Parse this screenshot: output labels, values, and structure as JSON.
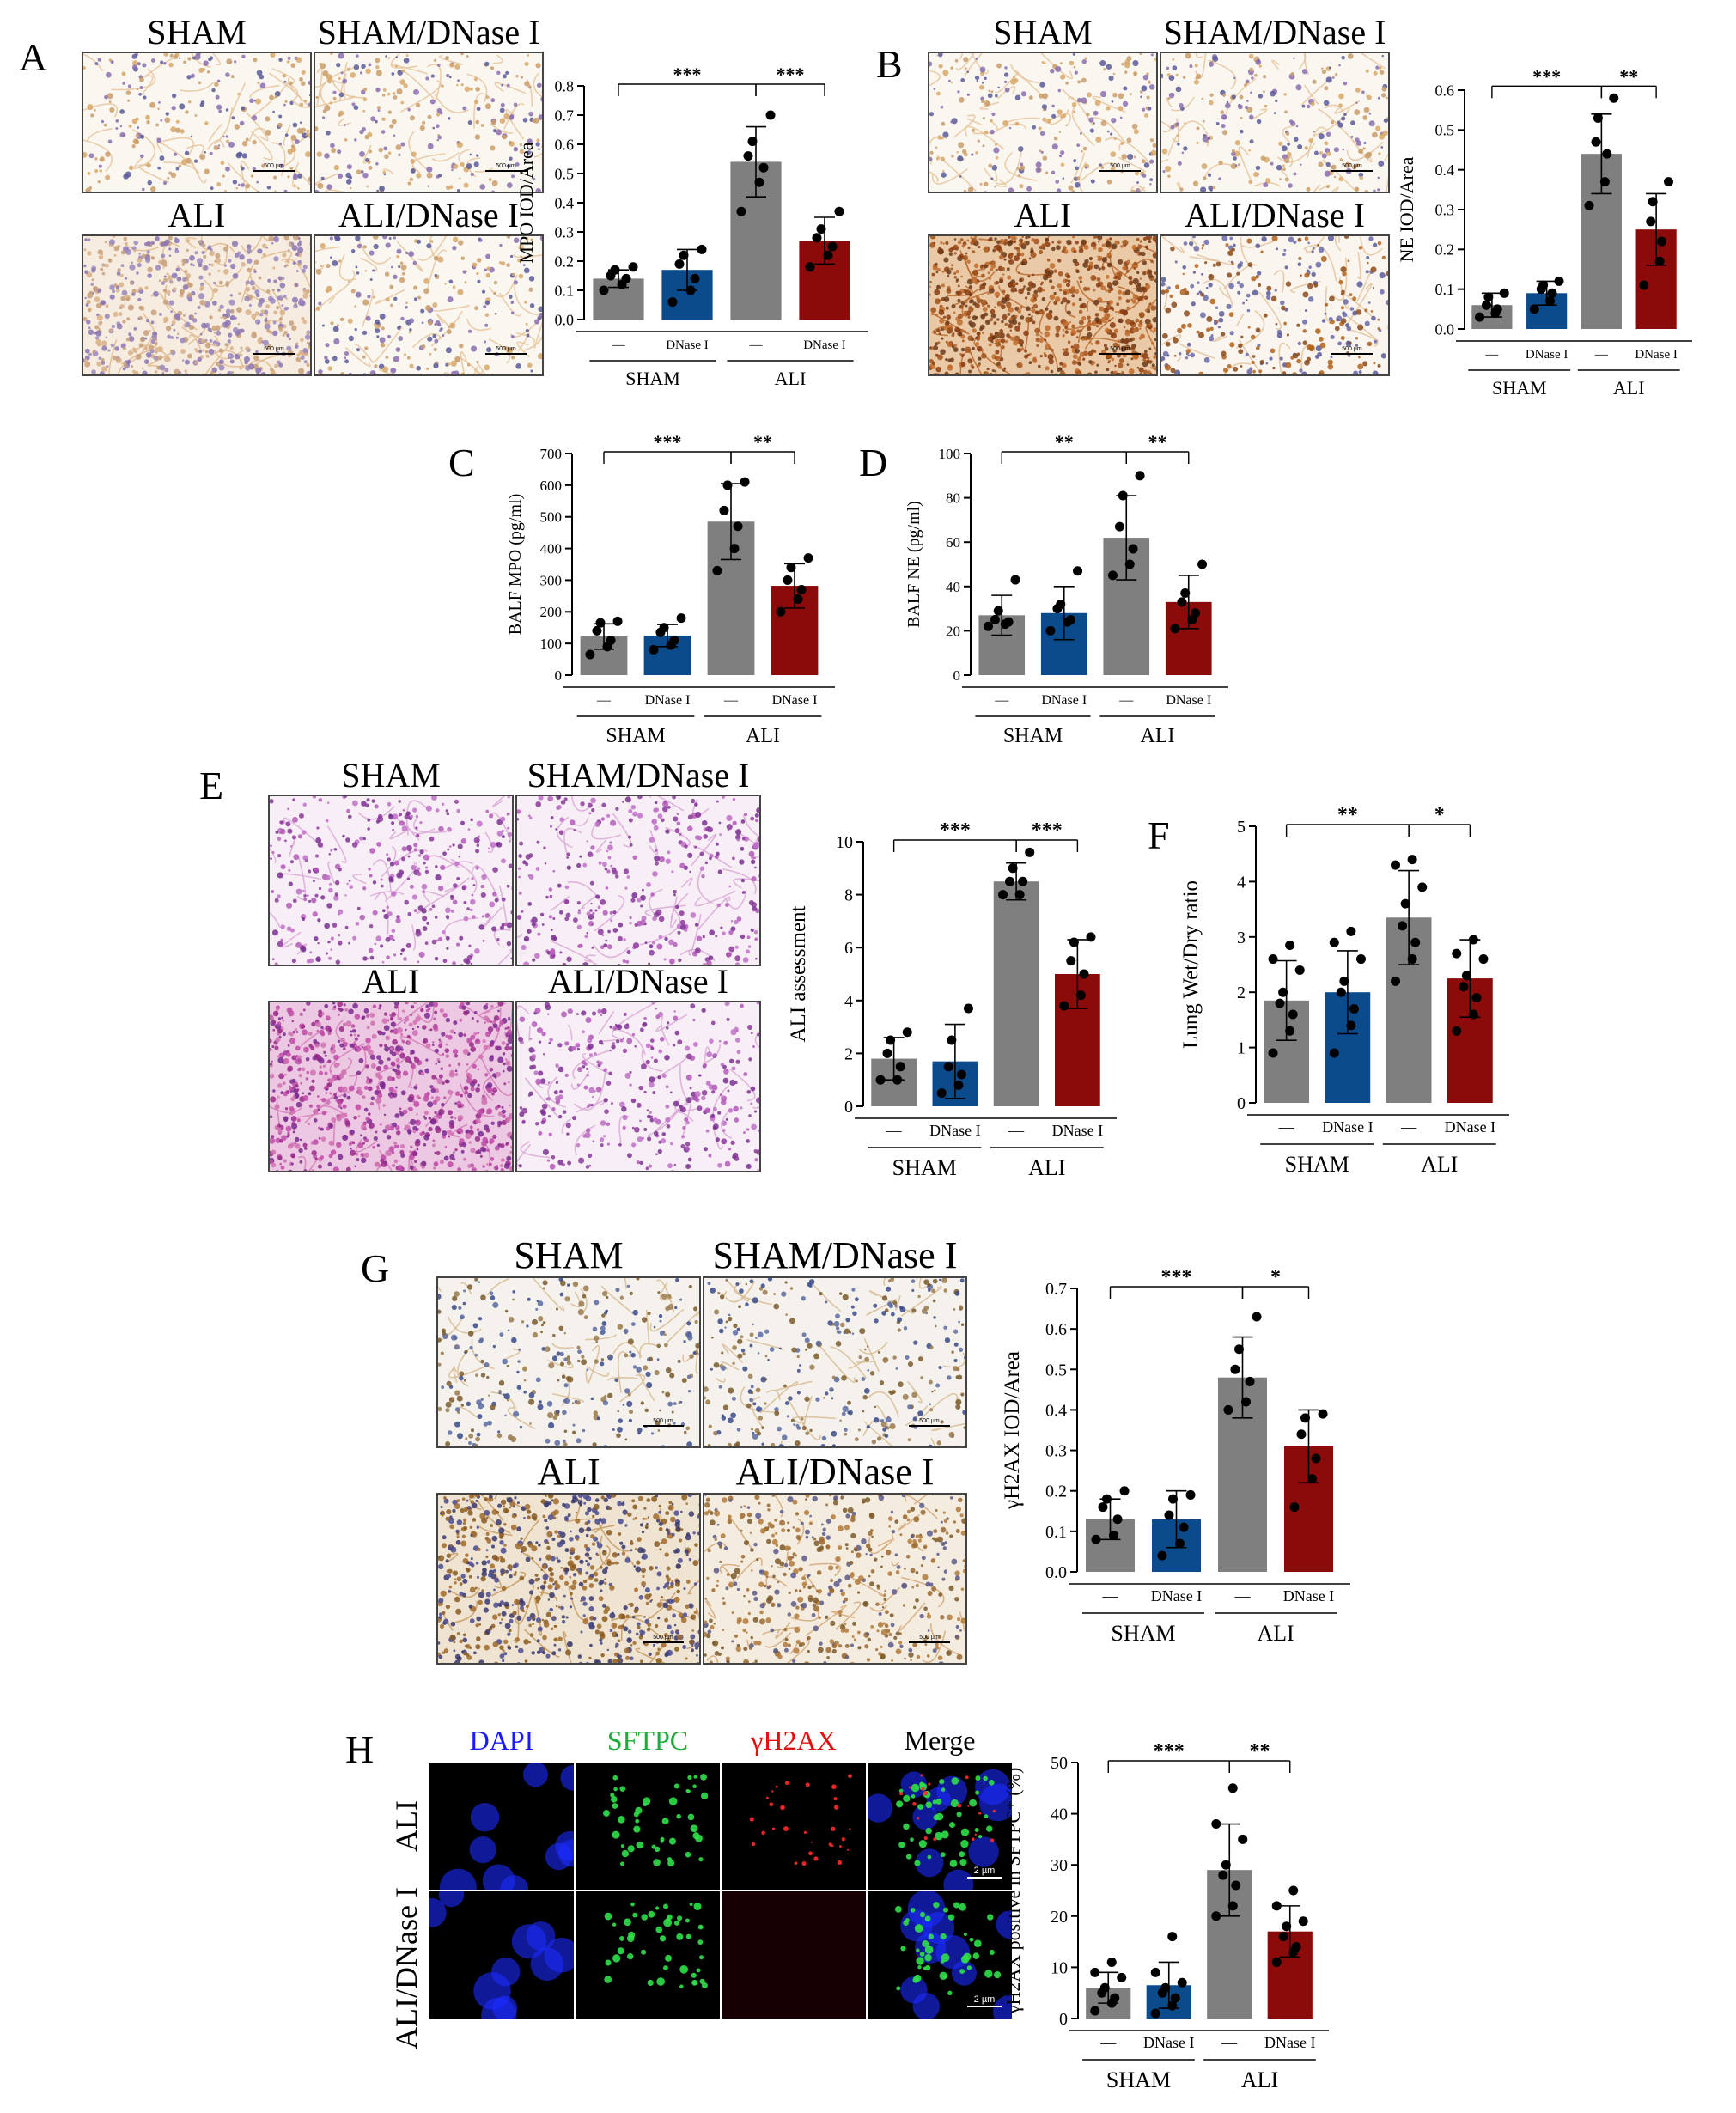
{
  "panels": {
    "A": {
      "letter": "A",
      "labels": [
        "SHAM",
        "SHAM/DNase I",
        "ALI",
        "ALI/DNase I"
      ],
      "scalebar": "500 µm"
    },
    "B": {
      "letter": "B",
      "labels": [
        "SHAM",
        "SHAM/DNase I",
        "ALI",
        "ALI/DNase I"
      ],
      "scalebar": "500 µm"
    },
    "C": {
      "letter": "C"
    },
    "D": {
      "letter": "D"
    },
    "E": {
      "letter": "E",
      "labels": [
        "SHAM",
        "SHAM/DNase I",
        "ALI",
        "ALI/DNase I"
      ]
    },
    "F": {
      "letter": "F"
    },
    "G": {
      "letter": "G",
      "labels": [
        "SHAM",
        "SHAM/DNase I",
        "ALI",
        "ALI/DNase I"
      ],
      "scalebar": "500 µm"
    },
    "H": {
      "letter": "H",
      "channels": [
        "DAPI",
        "SFTPC",
        "γH2AX",
        "Merge"
      ],
      "rows": [
        "ALI",
        "ALI/DNase I"
      ],
      "scalebar": "2 µm",
      "channel_colors": [
        "#1a1aff",
        "#1faa3a",
        "#e01010",
        "#000000"
      ]
    }
  },
  "colors": {
    "sham": "#7f7f7f",
    "sham_dnase": "#0b4b8c",
    "ali": "#7f7f7f",
    "ali_dnase": "#8b0a0a"
  },
  "chart_data": [
    {
      "id": "A",
      "type": "bar",
      "ylabel": "MPO IOD/Area",
      "ylim": [
        0,
        0.8
      ],
      "yticks": [
        "0.0",
        "0.1",
        "0.2",
        "0.3",
        "0.4",
        "0.5",
        "0.6",
        "0.7",
        "0.8"
      ],
      "categories": [
        "—",
        "DNase I",
        "—",
        "DNase I"
      ],
      "groups": [
        "SHAM",
        "ALI"
      ],
      "values": [
        0.14,
        0.17,
        0.54,
        0.27
      ],
      "errors": [
        0.03,
        0.07,
        0.12,
        0.08
      ],
      "points": [
        [
          0.1,
          0.12,
          0.14,
          0.15,
          0.17,
          0.18
        ],
        [
          0.06,
          0.1,
          0.14,
          0.19,
          0.22,
          0.24
        ],
        [
          0.37,
          0.47,
          0.52,
          0.56,
          0.61,
          0.7
        ],
        [
          0.18,
          0.22,
          0.25,
          0.28,
          0.31,
          0.37
        ]
      ],
      "sig": [
        {
          "from": 0,
          "to": 2,
          "text": "***"
        },
        {
          "from": 2,
          "to": 3,
          "text": "***"
        }
      ]
    },
    {
      "id": "B",
      "type": "bar",
      "ylabel": "NE IOD/Area",
      "ylim": [
        0,
        0.6
      ],
      "yticks": [
        "0.0",
        "0.1",
        "0.2",
        "0.3",
        "0.4",
        "0.5",
        "0.6"
      ],
      "categories": [
        "—",
        "DNase I",
        "—",
        "DNase I"
      ],
      "groups": [
        "SHAM",
        "ALI"
      ],
      "values": [
        0.06,
        0.09,
        0.44,
        0.25
      ],
      "errors": [
        0.03,
        0.03,
        0.1,
        0.09
      ],
      "points": [
        [
          0.03,
          0.04,
          0.05,
          0.06,
          0.08,
          0.09
        ],
        [
          0.05,
          0.07,
          0.09,
          0.1,
          0.11,
          0.12
        ],
        [
          0.31,
          0.37,
          0.44,
          0.47,
          0.53,
          0.58
        ],
        [
          0.11,
          0.17,
          0.22,
          0.27,
          0.32,
          0.37
        ]
      ],
      "sig": [
        {
          "from": 0,
          "to": 2,
          "text": "***"
        },
        {
          "from": 2,
          "to": 3,
          "text": "**"
        }
      ]
    },
    {
      "id": "C",
      "type": "bar",
      "ylabel": "BALF MPO (pg/ml)",
      "ylim": [
        0,
        700
      ],
      "yticks": [
        "0",
        "100",
        "200",
        "300",
        "400",
        "500",
        "600",
        "700"
      ],
      "categories": [
        "—",
        "DNase I",
        "—",
        "DNase I"
      ],
      "groups": [
        "SHAM",
        "ALI"
      ],
      "values": [
        122,
        125,
        485,
        282
      ],
      "errors": [
        40,
        35,
        120,
        70
      ],
      "points": [
        [
          65,
          90,
          110,
          140,
          165,
          170
        ],
        [
          80,
          95,
          110,
          135,
          150,
          180
        ],
        [
          330,
          400,
          470,
          520,
          600,
          610
        ],
        [
          200,
          240,
          270,
          300,
          340,
          370
        ]
      ],
      "sig": [
        {
          "from": 0,
          "to": 2,
          "text": "***"
        },
        {
          "from": 2,
          "to": 3,
          "text": "**"
        }
      ]
    },
    {
      "id": "D",
      "type": "bar",
      "ylabel": "BALF NE (pg/ml)",
      "ylim": [
        0,
        100
      ],
      "yticks": [
        "0",
        "20",
        "40",
        "60",
        "80",
        "100"
      ],
      "categories": [
        "—",
        "DNase I",
        "—",
        "DNase I"
      ],
      "groups": [
        "SHAM",
        "ALI"
      ],
      "values": [
        27,
        28,
        62,
        33
      ],
      "errors": [
        9,
        12,
        19,
        12
      ],
      "points": [
        [
          22,
          23,
          24,
          25,
          29,
          43
        ],
        [
          20,
          24,
          25,
          30,
          32,
          47
        ],
        [
          45,
          50,
          57,
          67,
          81,
          90
        ],
        [
          21,
          25,
          28,
          33,
          37,
          50
        ]
      ],
      "sig": [
        {
          "from": 0,
          "to": 2,
          "text": "**"
        },
        {
          "from": 2,
          "to": 3,
          "text": "**"
        }
      ]
    },
    {
      "id": "E",
      "type": "bar",
      "ylabel": "ALI assessment",
      "ylim": [
        0,
        10
      ],
      "yticks": [
        "0",
        "2",
        "4",
        "6",
        "8",
        "10"
      ],
      "categories": [
        "—",
        "DNase I",
        "—",
        "DNase I"
      ],
      "groups": [
        "SHAM",
        "ALI"
      ],
      "values": [
        1.8,
        1.7,
        8.5,
        5.0
      ],
      "errors": [
        0.8,
        1.4,
        0.7,
        1.3
      ],
      "points": [
        [
          1.0,
          1.0,
          1.5,
          2.0,
          2.5,
          2.8
        ],
        [
          0.5,
          0.8,
          1.2,
          1.5,
          2.5,
          3.7
        ],
        [
          8.0,
          8.0,
          8.5,
          8.5,
          9.0,
          9.6
        ],
        [
          3.8,
          4.2,
          5.0,
          5.5,
          6.2,
          6.4
        ]
      ],
      "sig": [
        {
          "from": 0,
          "to": 2,
          "text": "***"
        },
        {
          "from": 2,
          "to": 3,
          "text": "***"
        }
      ]
    },
    {
      "id": "F",
      "type": "bar",
      "ylabel": "Lung Wet/Dry ratio",
      "ylim": [
        0,
        5
      ],
      "yticks": [
        "0",
        "1",
        "2",
        "3",
        "4",
        "5"
      ],
      "categories": [
        "—",
        "DNase I",
        "—",
        "DNase I"
      ],
      "groups": [
        "SHAM",
        "ALI"
      ],
      "values": [
        1.85,
        2.0,
        3.35,
        2.25
      ],
      "errors": [
        0.72,
        0.75,
        0.85,
        0.7
      ],
      "points": [
        [
          0.9,
          1.3,
          1.6,
          1.8,
          2.0,
          2.4,
          2.6,
          2.85
        ],
        [
          0.9,
          1.4,
          1.7,
          2.0,
          2.2,
          2.6,
          2.9,
          3.1
        ],
        [
          2.2,
          2.6,
          2.9,
          3.2,
          3.6,
          3.9,
          4.3,
          4.4
        ],
        [
          1.3,
          1.6,
          1.9,
          2.1,
          2.3,
          2.6,
          2.7,
          2.95
        ]
      ],
      "sig": [
        {
          "from": 0,
          "to": 2,
          "text": "**"
        },
        {
          "from": 2,
          "to": 3,
          "text": "*"
        }
      ]
    },
    {
      "id": "G",
      "type": "bar",
      "ylabel": "γH2AX IOD/Area",
      "ylim": [
        0,
        0.7
      ],
      "yticks": [
        "0.0",
        "0.1",
        "0.2",
        "0.3",
        "0.4",
        "0.5",
        "0.6",
        "0.7"
      ],
      "categories": [
        "—",
        "DNase I",
        "—",
        "DNase I"
      ],
      "groups": [
        "SHAM",
        "ALI"
      ],
      "values": [
        0.13,
        0.13,
        0.48,
        0.31
      ],
      "errors": [
        0.05,
        0.07,
        0.1,
        0.09
      ],
      "points": [
        [
          0.08,
          0.09,
          0.13,
          0.16,
          0.18,
          0.2
        ],
        [
          0.04,
          0.07,
          0.11,
          0.14,
          0.18,
          0.19
        ],
        [
          0.4,
          0.42,
          0.47,
          0.5,
          0.55,
          0.63
        ],
        [
          0.16,
          0.23,
          0.28,
          0.34,
          0.38,
          0.39
        ]
      ],
      "sig": [
        {
          "from": 0,
          "to": 2,
          "text": "***"
        },
        {
          "from": 2,
          "to": 3,
          "text": "*"
        }
      ]
    },
    {
      "id": "H",
      "type": "bar",
      "ylabel": "γH2AX positive in SFTPC⁺ (%)",
      "ylim": [
        0,
        50
      ],
      "yticks": [
        "0",
        "10",
        "20",
        "30",
        "40",
        "50"
      ],
      "categories": [
        "—",
        "DNase I",
        "—",
        "DNase I"
      ],
      "groups": [
        "SHAM",
        "ALI"
      ],
      "values": [
        6,
        6.5,
        29,
        17
      ],
      "errors": [
        3,
        4.5,
        9,
        5
      ],
      "points": [
        [
          1.5,
          3,
          4,
          5,
          6,
          8,
          9,
          11
        ],
        [
          1,
          2.5,
          4,
          5,
          6,
          7,
          9,
          16
        ],
        [
          20,
          22,
          26,
          28,
          30,
          35,
          38,
          45
        ],
        [
          11,
          13,
          14,
          16,
          18,
          19,
          22,
          25
        ]
      ],
      "sig": [
        {
          "from": 0,
          "to": 2,
          "text": "***"
        },
        {
          "from": 2,
          "to": 3,
          "text": "**"
        }
      ]
    }
  ]
}
